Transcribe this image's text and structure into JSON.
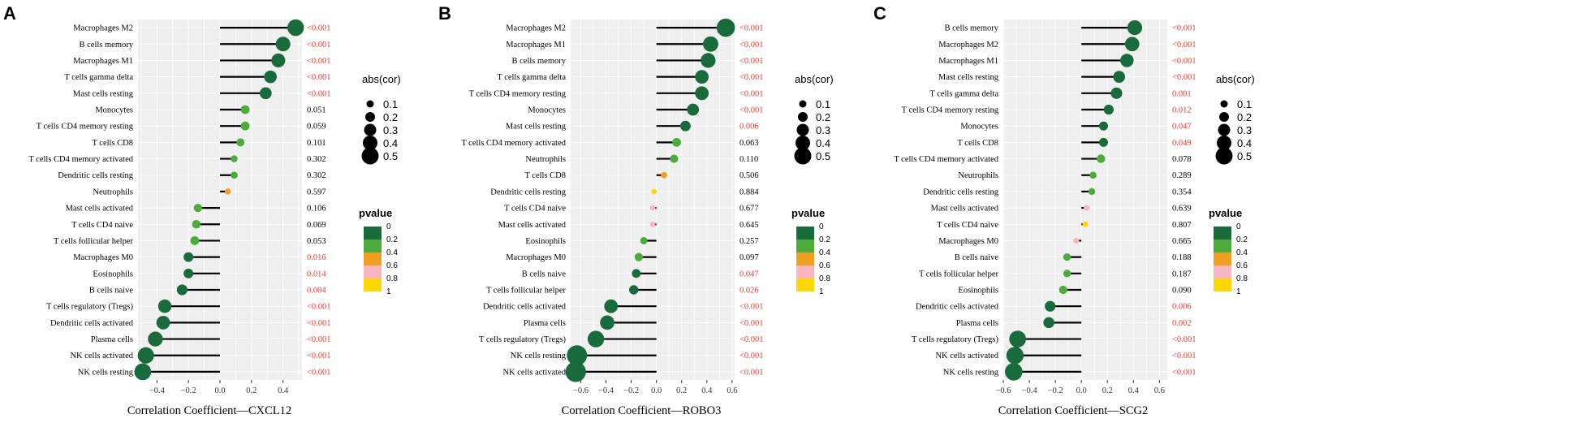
{
  "colors": {
    "panel_bg": "#efefef",
    "grid": "#ffffff",
    "stem": "#000000",
    "sig_text": "#e8392f",
    "text": "#000000",
    "pvalue_scale": [
      "#1a6b3c",
      "#4dab3c",
      "#f0a020",
      "#f7b6c0",
      "#ffd700"
    ]
  },
  "legend": {
    "size_title": "abs(cor)",
    "size_labels": [
      "0.1",
      "0.2",
      "0.3",
      "0.4",
      "0.5"
    ],
    "color_title": "pvalue",
    "color_labels": [
      "0",
      "0.2",
      "0.4",
      "0.6",
      "0.8",
      "1"
    ]
  },
  "chart_data": [
    {
      "type": "lollipop",
      "panel": "A",
      "xlabel": "Correlation Coefficient—CXCL12",
      "xlim": [
        -0.52,
        0.52
      ],
      "xticks": [
        -0.4,
        -0.2,
        0.0,
        0.2,
        0.4
      ],
      "xtick_labels": [
        "−0.4",
        "−0.2",
        "0.0",
        "0.2",
        "0.4"
      ],
      "categories": [
        "Macrophages M2",
        "B cells memory",
        "Macrophages M1",
        "T cells gamma delta",
        "Mast cells resting",
        "Monocytes",
        "T cells CD4 memory resting",
        "T cells CD8",
        "T cells CD4 memory activated",
        "Dendritic cells resting",
        "Neutrophils",
        "Mast cells activated",
        "T cells CD4 naive",
        "T cells follicular helper",
        "Macrophages M0",
        "Eosinophils",
        "B cells naive",
        "T cells regulatory (Tregs)",
        "Dendritic cells activated",
        "Plasma cells",
        "NK cells activated",
        "NK cells resting"
      ],
      "values": [
        0.48,
        0.4,
        0.37,
        0.32,
        0.29,
        0.16,
        0.16,
        0.13,
        0.09,
        0.09,
        0.05,
        -0.14,
        -0.15,
        -0.16,
        -0.2,
        -0.2,
        -0.24,
        -0.35,
        -0.36,
        -0.41,
        -0.47,
        -0.49
      ],
      "pvalues": [
        0.0,
        0.0,
        0.0,
        0.0,
        0.0,
        0.051,
        0.059,
        0.101,
        0.302,
        0.302,
        0.597,
        0.106,
        0.069,
        0.053,
        0.016,
        0.014,
        0.004,
        0.0,
        0.0,
        0.0,
        0.0,
        0.0
      ],
      "pvalue_labels": [
        "<0.001",
        "<0.001",
        "<0.001",
        "<0.001",
        "<0.001",
        "0.051",
        "0.059",
        "0.101",
        "0.302",
        "0.302",
        "0.597",
        "0.106",
        "0.069",
        "0.053",
        "0.016",
        "0.014",
        "0.004",
        "<0.001",
        "<0.001",
        "<0.001",
        "<0.001",
        "<0.001"
      ]
    },
    {
      "type": "lollipop",
      "panel": "B",
      "xlabel": "Correlation Coefficient—ROBO3",
      "xlim": [
        -0.68,
        0.62
      ],
      "xticks": [
        -0.6,
        -0.4,
        -0.2,
        0.0,
        0.2,
        0.4,
        0.6
      ],
      "xtick_labels": [
        "−0.6",
        "−0.4",
        "−0.2",
        "0.0",
        "0.2",
        "0.4",
        "0.6"
      ],
      "categories": [
        "Macrophages M2",
        "Macrophages M1",
        "B cells memory",
        "T cells gamma delta",
        "T cells CD4 memory resting",
        "Monocytes",
        "Mast cells resting",
        "T cells CD4 memory activated",
        "Neutrophils",
        "T cells CD8",
        "Dendritic cells resting",
        "T cells CD4 naive",
        "Mast cells activated",
        "Eosinophils",
        "Macrophages M0",
        "B cells naive",
        "T cells follicular helper",
        "Dendritic cells activated",
        "Plasma cells",
        "T cells regulatory (Tregs)",
        "NK cells resting",
        "NK cells activated"
      ],
      "values": [
        0.55,
        0.43,
        0.41,
        0.36,
        0.36,
        0.29,
        0.23,
        0.16,
        0.14,
        0.06,
        -0.02,
        -0.03,
        -0.03,
        -0.1,
        -0.14,
        -0.16,
        -0.18,
        -0.36,
        -0.39,
        -0.48,
        -0.63,
        -0.64
      ],
      "pvalues": [
        0.0,
        0.0,
        0.0,
        0.0,
        0.0,
        0.0,
        0.006,
        0.063,
        0.11,
        0.506,
        0.884,
        0.677,
        0.645,
        0.257,
        0.097,
        0.047,
        0.026,
        0.0,
        0.0,
        0.0,
        0.0,
        0.0
      ],
      "pvalue_labels": [
        "<0.001",
        "<0.001",
        "<0.001",
        "<0.001",
        "<0.001",
        "<0.001",
        "0.006",
        "0.063",
        "0.110",
        "0.506",
        "0.884",
        "0.677",
        "0.645",
        "0.257",
        "0.097",
        "0.047",
        "0.026",
        "<0.001",
        "<0.001",
        "<0.001",
        "<0.001",
        "<0.001"
      ]
    },
    {
      "type": "lollipop",
      "panel": "C",
      "xlabel": "Correlation Coefficient—SCG2",
      "xlim": [
        -0.6,
        0.66
      ],
      "xticks": [
        -0.6,
        -0.4,
        -0.2,
        0.0,
        0.2,
        0.4,
        0.6
      ],
      "xtick_labels": [
        "−0.6",
        "−0.4",
        "−0.2",
        "0.0",
        "0.2",
        "0.4",
        "0.6"
      ],
      "categories": [
        "B cells memory",
        "Macrophages M2",
        "Macrophages M1",
        "Mast cells resting",
        "T cells gamma delta",
        "T cells CD4 memory resting",
        "Monocytes",
        "T cells CD8",
        "T cells CD4 memory activated",
        "Neutrophils",
        "Dendritic cells resting",
        "Mast cells activated",
        "T cells CD4 naive",
        "Macrophages M0",
        "B cells naive",
        "T cells follicular helper",
        "Eosinophils",
        "Dendritic cells activated",
        "Plasma cells",
        "T cells regulatory (Tregs)",
        "NK cells activated",
        "NK cells resting"
      ],
      "values": [
        0.41,
        0.39,
        0.35,
        0.29,
        0.27,
        0.21,
        0.17,
        0.17,
        0.15,
        0.09,
        0.08,
        0.04,
        0.03,
        -0.04,
        -0.11,
        -0.11,
        -0.14,
        -0.24,
        -0.25,
        -0.49,
        -0.51,
        -0.52
      ],
      "pvalues": [
        0.0,
        0.0,
        0.0,
        0.0,
        0.001,
        0.012,
        0.047,
        0.049,
        0.078,
        0.289,
        0.354,
        0.639,
        0.807,
        0.665,
        0.188,
        0.187,
        0.09,
        0.006,
        0.002,
        0.0,
        0.0,
        0.0
      ],
      "pvalue_labels": [
        "<0.001",
        "<0.001",
        "<0.001",
        "<0.001",
        "0.001",
        "0.012",
        "0.047",
        "0.049",
        "0.078",
        "0.289",
        "0.354",
        "0.639",
        "0.807",
        "0.665",
        "0.188",
        "0.187",
        "0.090",
        "0.006",
        "0.002",
        "<0.001",
        "<0.001",
        "<0.001"
      ]
    }
  ]
}
